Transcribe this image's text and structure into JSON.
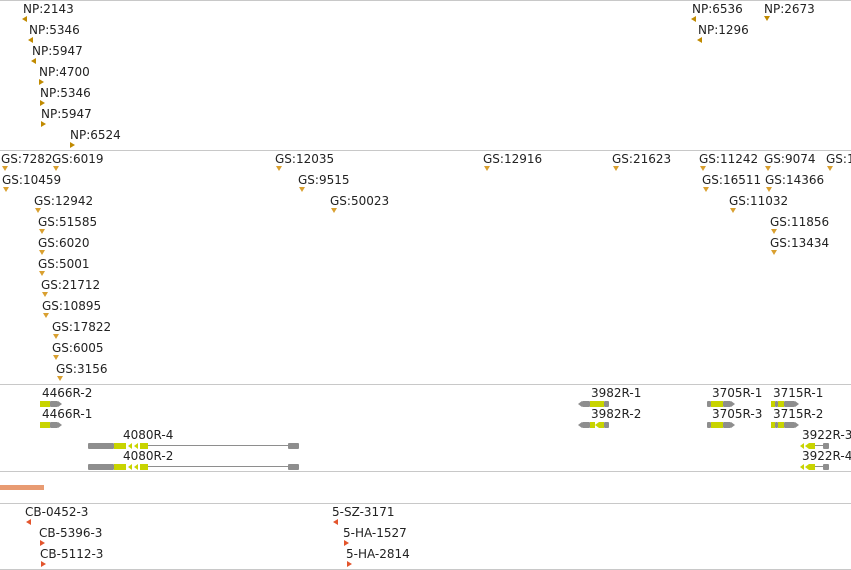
{
  "tracks": {
    "np": {
      "items": [
        {
          "label": "NP:2143",
          "dir": "left"
        },
        {
          "label": "NP:5346",
          "dir": "left"
        },
        {
          "label": "NP:5947",
          "dir": "left"
        },
        {
          "label": "NP:4700",
          "dir": "right"
        },
        {
          "label": "NP:5346",
          "dir": "right"
        },
        {
          "label": "NP:5947",
          "dir": "right"
        },
        {
          "label": "NP:6524",
          "dir": "right"
        },
        {
          "label": "NP:6536",
          "dir": "left"
        },
        {
          "label": "NP:1296",
          "dir": "left"
        },
        {
          "label": "NP:2673",
          "dir": "down"
        }
      ]
    },
    "gs": {
      "items": [
        {
          "label": "GS:7282"
        },
        {
          "label": "GS:6019"
        },
        {
          "label": "GS:10459"
        },
        {
          "label": "GS:12942"
        },
        {
          "label": "GS:51585"
        },
        {
          "label": "GS:6020"
        },
        {
          "label": "GS:5001"
        },
        {
          "label": "GS:21712"
        },
        {
          "label": "GS:10895"
        },
        {
          "label": "GS:17822"
        },
        {
          "label": "GS:6005"
        },
        {
          "label": "GS:3156"
        },
        {
          "label": "GS:12035"
        },
        {
          "label": "GS:9515"
        },
        {
          "label": "GS:50023"
        },
        {
          "label": "GS:12916"
        },
        {
          "label": "GS:21623"
        },
        {
          "label": "GS:11242"
        },
        {
          "label": "GS:16511"
        },
        {
          "label": "GS:11032"
        },
        {
          "label": "GS:9074"
        },
        {
          "label": "GS:14366"
        },
        {
          "label": "GS:11856"
        },
        {
          "label": "GS:13434"
        },
        {
          "label": "GS:1"
        }
      ]
    },
    "genes": {
      "items": [
        {
          "label": "4466R-2"
        },
        {
          "label": "4466R-1"
        },
        {
          "label": "4080R-4"
        },
        {
          "label": "4080R-2"
        },
        {
          "label": "3982R-1"
        },
        {
          "label": "3982R-2"
        },
        {
          "label": "3705R-1"
        },
        {
          "label": "3705R-3"
        },
        {
          "label": "3715R-1"
        },
        {
          "label": "3715R-2"
        },
        {
          "label": "3922R-3"
        },
        {
          "label": "3922R-4"
        }
      ]
    },
    "cb": {
      "items": [
        {
          "label": "CB-0452-3"
        },
        {
          "label": "CB-5396-3"
        },
        {
          "label": "CB-5112-3"
        },
        {
          "label": "5-SZ-3171"
        },
        {
          "label": "5-HA-1527"
        },
        {
          "label": "5-HA-2814"
        }
      ]
    }
  },
  "colors": {
    "np_marker": "#c08a00",
    "gs_marker": "#d9a030",
    "cb_marker": "#e3552d",
    "gene_body": "#8e8e8e",
    "gene_exon": "#c8d400",
    "coverage": "#e89b72",
    "separator": "#c8c8c8"
  }
}
